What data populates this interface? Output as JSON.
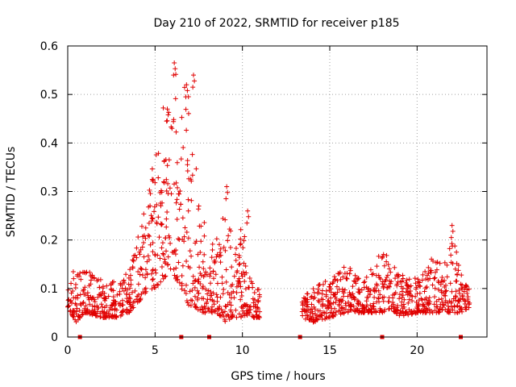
{
  "chart_data": {
    "type": "scatter",
    "title": "Day 210 of 2022, SRMTID for receiver p185",
    "xlabel": "GPS time / hours",
    "ylabel": "SRMTID / TECUs",
    "xlim": [
      0,
      24
    ],
    "ylim": [
      0,
      0.6
    ],
    "x_ticks": [
      0,
      5,
      10,
      15,
      20
    ],
    "x_tick_labels": [
      "0",
      "5",
      "10",
      "15",
      "20"
    ],
    "y_ticks": [
      0,
      0.1,
      0.2,
      0.3,
      0.4,
      0.5,
      0.6
    ],
    "y_tick_labels": [
      "0",
      "0.1",
      "0.2",
      "0.3",
      "0.4",
      "0.5",
      "0.6"
    ],
    "grid": true,
    "marker": "+",
    "series_color": "#e00000",
    "envelope": [
      {
        "t": 0.0,
        "lo": 0.06,
        "hi": 0.13
      },
      {
        "t": 0.5,
        "lo": 0.03,
        "hi": 0.15
      },
      {
        "t": 1.0,
        "lo": 0.05,
        "hi": 0.14
      },
      {
        "t": 2.0,
        "lo": 0.04,
        "hi": 0.12
      },
      {
        "t": 3.0,
        "lo": 0.04,
        "hi": 0.11
      },
      {
        "t": 3.5,
        "lo": 0.05,
        "hi": 0.14
      },
      {
        "t": 4.0,
        "lo": 0.07,
        "hi": 0.2
      },
      {
        "t": 4.5,
        "lo": 0.09,
        "hi": 0.32
      },
      {
        "t": 5.0,
        "lo": 0.1,
        "hi": 0.36
      },
      {
        "t": 5.5,
        "lo": 0.12,
        "hi": 0.48
      },
      {
        "t": 6.0,
        "lo": 0.13,
        "hi": 0.56
      },
      {
        "t": 6.5,
        "lo": 0.1,
        "hi": 0.53
      },
      {
        "t": 7.0,
        "lo": 0.06,
        "hi": 0.5
      },
      {
        "t": 7.5,
        "lo": 0.05,
        "hi": 0.3
      },
      {
        "t": 8.0,
        "lo": 0.05,
        "hi": 0.2
      },
      {
        "t": 8.5,
        "lo": 0.05,
        "hi": 0.2
      },
      {
        "t": 9.0,
        "lo": 0.03,
        "hi": 0.3
      },
      {
        "t": 9.5,
        "lo": 0.04,
        "hi": 0.2
      },
      {
        "t": 10.0,
        "lo": 0.04,
        "hi": 0.24
      },
      {
        "t": 10.5,
        "lo": 0.04,
        "hi": 0.12
      },
      {
        "t": 11.0,
        "lo": 0.04,
        "hi": 0.1
      },
      {
        "t": 13.4,
        "lo": 0.04,
        "hi": 0.08
      },
      {
        "t": 14.0,
        "lo": 0.03,
        "hi": 0.1
      },
      {
        "t": 15.0,
        "lo": 0.04,
        "hi": 0.12
      },
      {
        "t": 16.0,
        "lo": 0.05,
        "hi": 0.15
      },
      {
        "t": 17.0,
        "lo": 0.05,
        "hi": 0.12
      },
      {
        "t": 18.0,
        "lo": 0.05,
        "hi": 0.18
      },
      {
        "t": 18.5,
        "lo": 0.06,
        "hi": 0.16
      },
      {
        "t": 19.0,
        "lo": 0.04,
        "hi": 0.13
      },
      {
        "t": 20.0,
        "lo": 0.05,
        "hi": 0.12
      },
      {
        "t": 21.0,
        "lo": 0.05,
        "hi": 0.17
      },
      {
        "t": 21.5,
        "lo": 0.05,
        "hi": 0.15
      },
      {
        "t": 22.0,
        "lo": 0.05,
        "hi": 0.23
      },
      {
        "t": 22.5,
        "lo": 0.05,
        "hi": 0.13
      },
      {
        "t": 23.0,
        "lo": 0.06,
        "hi": 0.1
      }
    ],
    "peaks": [
      {
        "x": 6.1,
        "y": 0.565
      },
      {
        "x": 7.2,
        "y": 0.54
      },
      {
        "x": 5.7,
        "y": 0.47
      },
      {
        "x": 6.8,
        "y": 0.52
      },
      {
        "x": 9.1,
        "y": 0.31
      },
      {
        "x": 22.0,
        "y": 0.23
      },
      {
        "x": 10.3,
        "y": 0.26
      }
    ],
    "axis_markers": [
      0.7,
      6.5,
      8.1,
      13.3,
      18.0,
      22.5
    ]
  }
}
